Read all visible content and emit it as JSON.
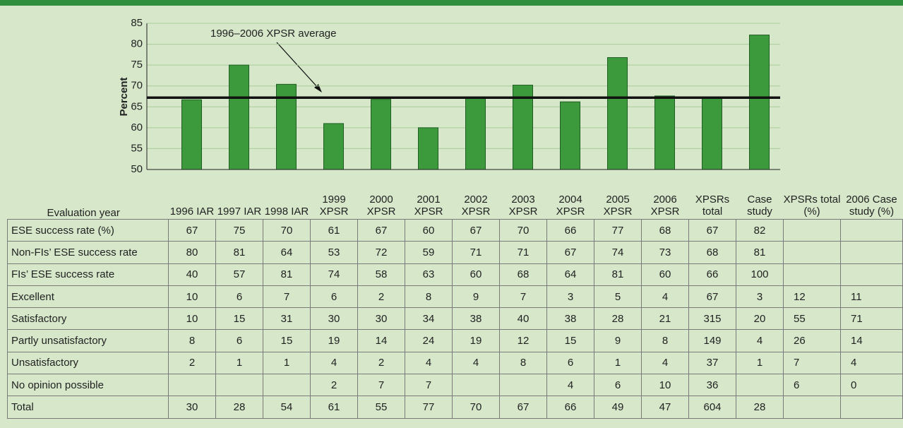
{
  "chart_data": {
    "type": "bar",
    "y_label": "Percent",
    "annotation": "1996–2006 XPSR average",
    "values": [
      66.7,
      75,
      70.4,
      61,
      66.8,
      60,
      67,
      70.2,
      66.2,
      76.8,
      67.6,
      67,
      82.2
    ],
    "average": 67.2,
    "color": "#3c9a3c",
    "ylim": [
      50,
      85
    ],
    "yticks": [
      50,
      55,
      60,
      65,
      70,
      75,
      80,
      85
    ],
    "grid": true
  },
  "table": {
    "corner": "Evaluation year",
    "columns": [
      "1996 IAR",
      "1997 IAR",
      "1998 IAR",
      "1999 XPSR",
      "2000 XPSR",
      "2001 XPSR",
      "2002 XPSR",
      "2003 XPSR",
      "2004 XPSR",
      "2005 XPSR",
      "2006 XPSR",
      "XPSRs total",
      "Case study",
      "XPSRs total (%)",
      "2006 Case study (%)"
    ],
    "rows": [
      {
        "label": "ESE success rate (%)",
        "cells": [
          67,
          75,
          70,
          61,
          67,
          60,
          67,
          70,
          66,
          77,
          68,
          67,
          82,
          null,
          null
        ]
      },
      {
        "label": "Non-FIs’ ESE success rate",
        "cells": [
          80,
          81,
          64,
          53,
          72,
          59,
          71,
          71,
          67,
          74,
          73,
          68,
          81,
          null,
          null
        ]
      },
      {
        "label": "FIs’ ESE success rate",
        "cells": [
          40,
          57,
          81,
          74,
          58,
          63,
          60,
          68,
          64,
          81,
          60,
          66,
          100,
          null,
          null
        ]
      },
      {
        "label": "Excellent",
        "cells": [
          10,
          6,
          7,
          6,
          2,
          8,
          9,
          7,
          3,
          5,
          4,
          67,
          3,
          12,
          11
        ]
      },
      {
        "label": "Satisfactory",
        "cells": [
          10,
          15,
          31,
          30,
          30,
          34,
          38,
          40,
          38,
          28,
          21,
          315,
          20,
          55,
          71
        ]
      },
      {
        "label": "Partly unsatisfactory",
        "cells": [
          8,
          6,
          15,
          19,
          14,
          24,
          19,
          12,
          15,
          9,
          8,
          149,
          4,
          26,
          14
        ]
      },
      {
        "label": "Unsatisfactory",
        "cells": [
          2,
          1,
          1,
          4,
          2,
          4,
          4,
          8,
          6,
          1,
          4,
          37,
          1,
          7,
          4
        ]
      },
      {
        "label": "No opinion possible",
        "cells": [
          null,
          null,
          null,
          2,
          7,
          7,
          null,
          null,
          4,
          6,
          10,
          36,
          null,
          6,
          0
        ]
      },
      {
        "label": "Total",
        "cells": [
          30,
          28,
          54,
          61,
          55,
          77,
          70,
          67,
          66,
          49,
          47,
          604,
          28,
          null,
          null
        ]
      }
    ]
  }
}
